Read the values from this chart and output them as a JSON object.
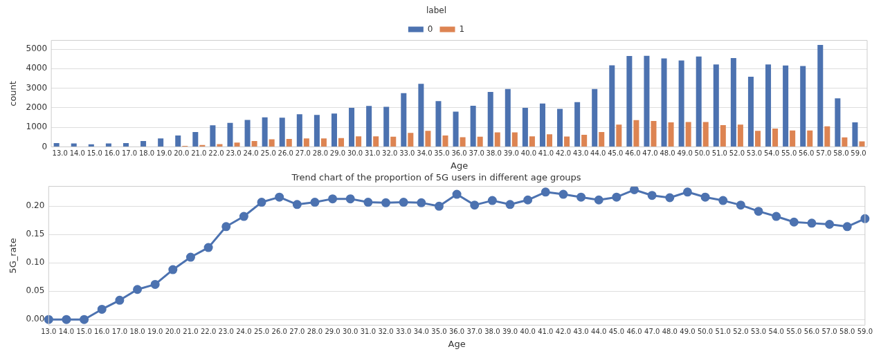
{
  "chart_data": [
    {
      "type": "bar",
      "xlabel": "Age",
      "ylabel": "count",
      "legend_title": "label",
      "legend": "top",
      "categories": [
        "13.0",
        "14.0",
        "15.0",
        "16.0",
        "17.0",
        "18.0",
        "19.0",
        "20.0",
        "21.0",
        "22.0",
        "23.0",
        "24.0",
        "25.0",
        "26.0",
        "27.0",
        "28.0",
        "29.0",
        "30.0",
        "31.0",
        "32.0",
        "33.0",
        "34.0",
        "35.0",
        "36.0",
        "37.0",
        "38.0",
        "39.0",
        "40.0",
        "41.0",
        "42.0",
        "43.0",
        "44.0",
        "45.0",
        "46.0",
        "47.0",
        "48.0",
        "49.0",
        "50.0",
        "51.0",
        "52.0",
        "53.0",
        "54.0",
        "55.0",
        "56.0",
        "57.0",
        "58.0",
        "59.0"
      ],
      "series": [
        {
          "name": "0",
          "color": "#4c72b0",
          "values": [
            190,
            170,
            130,
            170,
            190,
            300,
            430,
            580,
            760,
            1100,
            1230,
            1380,
            1510,
            1490,
            1670,
            1630,
            1700,
            2000,
            2090,
            2050,
            2750,
            3230,
            2340,
            1800,
            2100,
            2810,
            2960,
            2000,
            2220,
            1940,
            2290,
            2960,
            4170,
            4650,
            4660,
            4530,
            4420,
            4620,
            4220,
            4540,
            3590,
            4220,
            4160,
            4140,
            5220,
            2480,
            1250
          ]
        },
        {
          "name": "1",
          "color": "#dd8452",
          "values": [
            0,
            0,
            0,
            0,
            0,
            0,
            0,
            50,
            90,
            140,
            220,
            300,
            390,
            400,
            430,
            430,
            450,
            540,
            540,
            520,
            710,
            820,
            580,
            490,
            520,
            740,
            740,
            540,
            640,
            530,
            620,
            760,
            1140,
            1370,
            1320,
            1250,
            1270,
            1270,
            1110,
            1140,
            820,
            930,
            840,
            840,
            1050,
            480,
            280
          ]
        }
      ],
      "ylim": [
        0,
        5450
      ],
      "yticks": [
        0,
        1000,
        2000,
        3000,
        4000,
        5000
      ],
      "grid": "y"
    },
    {
      "type": "line",
      "title": "Trend chart of the proportion of 5G users in different age groups",
      "xlabel": "Age",
      "ylabel": "5G_rate",
      "marker": "circle",
      "categories": [
        "13.0",
        "14.0",
        "15.0",
        "16.0",
        "17.0",
        "18.0",
        "19.0",
        "20.0",
        "21.0",
        "22.0",
        "23.0",
        "24.0",
        "25.0",
        "26.0",
        "27.0",
        "28.0",
        "29.0",
        "30.0",
        "31.0",
        "32.0",
        "33.0",
        "34.0",
        "35.0",
        "36.0",
        "37.0",
        "38.0",
        "39.0",
        "40.0",
        "41.0",
        "42.0",
        "43.0",
        "44.0",
        "45.0",
        "46.0",
        "47.0",
        "48.0",
        "49.0",
        "50.0",
        "51.0",
        "52.0",
        "53.0",
        "54.0",
        "55.0",
        "56.0",
        "57.0",
        "58.0",
        "59.0"
      ],
      "series": [
        {
          "color": "#4c72b0",
          "values": [
            0,
            0,
            0,
            0.018,
            0.034,
            0.053,
            0.062,
            0.088,
            0.11,
            0.127,
            0.164,
            0.182,
            0.207,
            0.216,
            0.203,
            0.207,
            0.213,
            0.213,
            0.207,
            0.206,
            0.207,
            0.206,
            0.2,
            0.221,
            0.202,
            0.21,
            0.203,
            0.211,
            0.225,
            0.221,
            0.216,
            0.211,
            0.216,
            0.229,
            0.219,
            0.215,
            0.225,
            0.216,
            0.21,
            0.202,
            0.191,
            0.182,
            0.172,
            0.17,
            0.168,
            0.164,
            0.178
          ]
        }
      ],
      "ylim": [
        -0.01,
        0.235
      ],
      "yticks": [
        {
          "value": 0,
          "label": "0.00"
        },
        {
          "value": 0.05,
          "label": "0.05"
        },
        {
          "value": 0.1,
          "label": "0.10"
        },
        {
          "value": 0.15,
          "label": "0.15"
        },
        {
          "value": 0.2,
          "label": "0.20"
        }
      ],
      "grid": "y"
    }
  ]
}
